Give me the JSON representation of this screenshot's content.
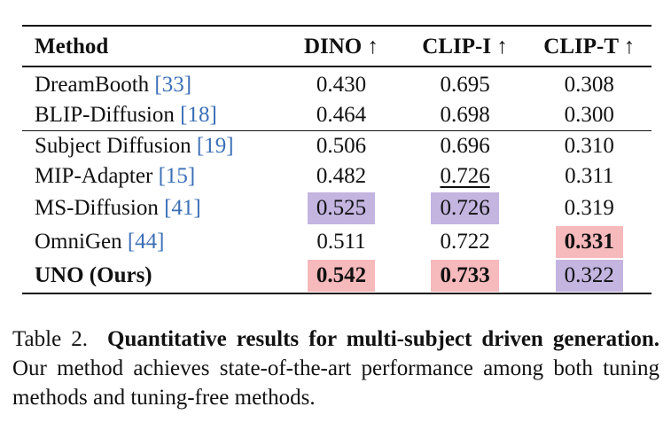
{
  "table": {
    "headers": {
      "method": "Method",
      "dino": "DINO ↑",
      "clip_i": "CLIP-I ↑",
      "clip_t": "CLIP-T ↑"
    },
    "rows": [
      {
        "name": "DreamBooth ",
        "ref": "[33]",
        "dino": "0.430",
        "clip_i": "0.695",
        "clip_t": "0.308"
      },
      {
        "name": "BLIP-Diffusion ",
        "ref": "[18]",
        "dino": "0.464",
        "clip_i": "0.698",
        "clip_t": "0.300"
      },
      {
        "name": "Subject Diffusion ",
        "ref": "[19]",
        "dino": "0.506",
        "clip_i": "0.696",
        "clip_t": "0.310"
      },
      {
        "name": "MIP-Adapter ",
        "ref": "[15]",
        "dino": "0.482",
        "clip_i": "0.726",
        "clip_t": "0.311"
      },
      {
        "name": "MS-Diffusion ",
        "ref": "[41]",
        "dino": "0.525",
        "clip_i": "0.726",
        "clip_t": "0.319"
      },
      {
        "name": "OmniGen ",
        "ref": "[44]",
        "dino": "0.511",
        "clip_i": "0.722",
        "clip_t": "0.331"
      },
      {
        "name": "UNO (Ours)",
        "ref": "",
        "dino": "0.542",
        "clip_i": "0.733",
        "clip_t": "0.322"
      }
    ]
  },
  "caption": {
    "label": "Table 2.",
    "bold_text": "Quantitative results for multi-subject driven generation.",
    "text": "Our method achieves state-of-the-art performance among both tuning methods and tuning-free methods."
  },
  "colors": {
    "highlight_best": "#f6b9bc",
    "highlight_second": "#c3b4e0",
    "reference_link": "#3b6fb6"
  }
}
